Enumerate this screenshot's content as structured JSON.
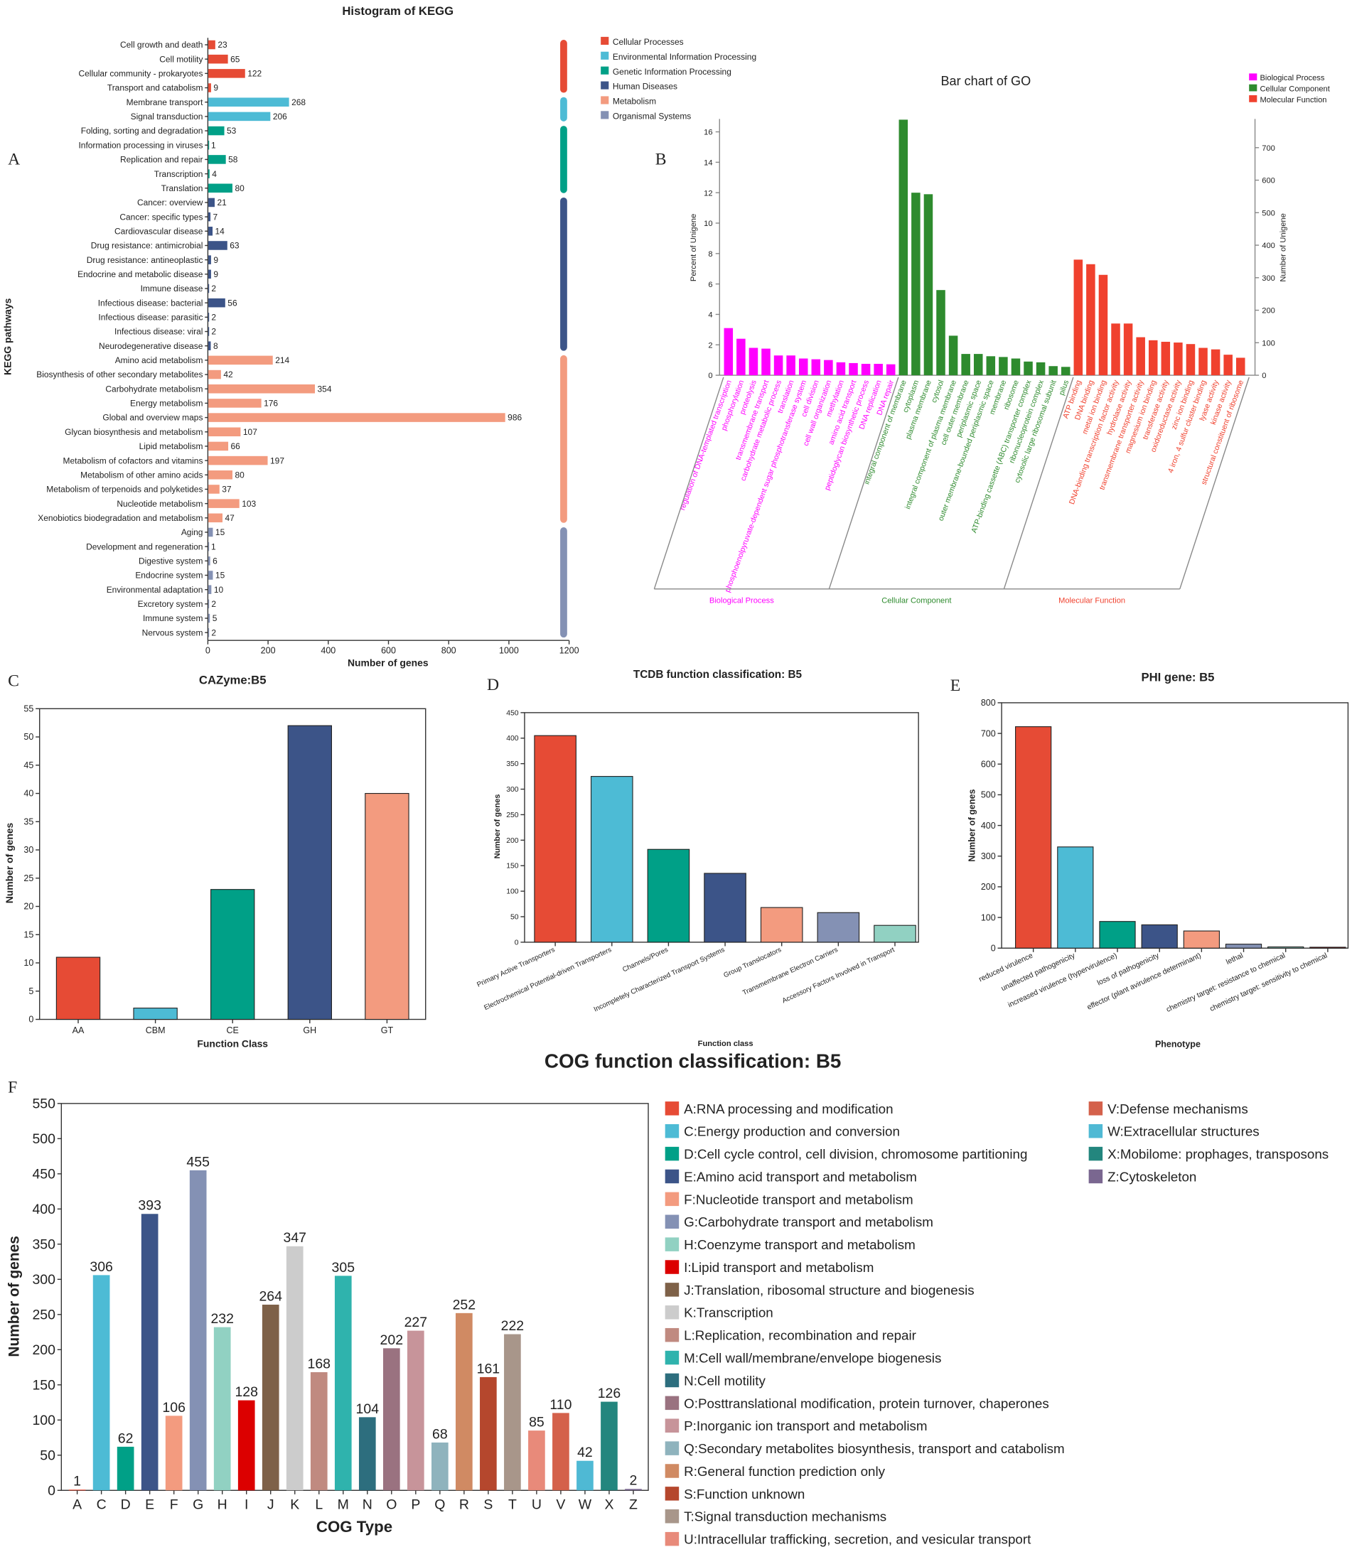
{
  "panel_labels": {
    "a": "A",
    "b": "B",
    "c": "C",
    "d": "D",
    "e": "E",
    "f": "F"
  },
  "chart_data": [
    {
      "id": "kegg",
      "type": "bar",
      "orientation": "horizontal",
      "title": "Histogram of KEGG",
      "xlabel": "Number of genes",
      "ylabel": "KEGG pathways",
      "xlim": [
        0,
        1200
      ],
      "xticks": [
        0,
        200,
        400,
        600,
        800,
        1000,
        1200
      ],
      "groups": [
        {
          "name": "Cellular Processes",
          "color": "#e64b35"
        },
        {
          "name": "Environmental Information Processing",
          "color": "#4dbbd5"
        },
        {
          "name": "Genetic Information Processing",
          "color": "#00a087"
        },
        {
          "name": "Human Diseases",
          "color": "#3c5488"
        },
        {
          "name": "Metabolism",
          "color": "#f39b7f"
        },
        {
          "name": "Organismal Systems",
          "color": "#8491b4"
        }
      ],
      "categories": [
        "Cell growth and death",
        "Cell motility",
        "Cellular community - prokaryotes",
        "Transport and catabolism",
        "Membrane transport",
        "Signal transduction",
        "Folding, sorting and degradation",
        "Information processing in viruses",
        "Replication and repair",
        "Transcription",
        "Translation",
        "Cancer: overview",
        "Cancer: specific types",
        "Cardiovascular disease",
        "Drug resistance: antimicrobial",
        "Drug resistance: antineoplastic",
        "Endocrine and metabolic disease",
        "Immune disease",
        "Infectious disease: bacterial",
        "Infectious disease: parasitic",
        "Infectious disease: viral",
        "Neurodegenerative disease",
        "Amino acid metabolism",
        "Biosynthesis of other secondary metabolites",
        "Carbohydrate metabolism",
        "Energy metabolism",
        "Global and overview maps",
        "Glycan biosynthesis and metabolism",
        "Lipid metabolism",
        "Metabolism of cofactors and vitamins",
        "Metabolism of other amino acids",
        "Metabolism of terpenoids and polyketides",
        "Nucleotide metabolism",
        "Xenobiotics biodegradation and metabolism",
        "Aging",
        "Development and regeneration",
        "Digestive system",
        "Endocrine system",
        "Environmental adaptation",
        "Excretory system",
        "Immune system",
        "Nervous system"
      ],
      "values": [
        23,
        65,
        122,
        9,
        268,
        206,
        53,
        1,
        58,
        4,
        80,
        21,
        7,
        14,
        63,
        9,
        9,
        2,
        56,
        2,
        2,
        8,
        214,
        42,
        354,
        176,
        986,
        107,
        66,
        197,
        80,
        37,
        103,
        47,
        15,
        1,
        6,
        15,
        10,
        2,
        5,
        2
      ],
      "group_index": [
        0,
        0,
        0,
        0,
        1,
        1,
        2,
        2,
        2,
        2,
        2,
        3,
        3,
        3,
        3,
        3,
        3,
        3,
        3,
        3,
        3,
        3,
        4,
        4,
        4,
        4,
        4,
        4,
        4,
        4,
        4,
        4,
        4,
        4,
        5,
        5,
        5,
        5,
        5,
        5,
        5,
        5
      ]
    },
    {
      "id": "go",
      "type": "bar",
      "title": "Bar chart of GO",
      "ylabel": "Percent of Unigene",
      "ylabel_right": "Number of Unigene",
      "ylim": [
        0,
        16.8
      ],
      "yticks": [
        0,
        2,
        4,
        6,
        8,
        10,
        12,
        14,
        16
      ],
      "yticks_right": [
        0,
        100,
        200,
        300,
        400,
        500,
        600,
        700
      ],
      "groups": [
        {
          "name": "Biological Process",
          "color": "#ff00ff",
          "categories": [
            "regulation of DNA-templated transcription",
            "phosphorylation",
            "proteolysis",
            "transmembrane transport",
            "carbohydrate metabolic process",
            "translation",
            "phosphoenolpyruvate-dependent sugar phosphotransferase system",
            "cell division",
            "cell wall organization",
            "methylation",
            "amino acid transport",
            "peptidoglycan biosynthetic process",
            "DNA replication",
            "DNA repair"
          ],
          "values": [
            3.1,
            2.4,
            1.8,
            1.75,
            1.3,
            1.3,
            1.1,
            1.05,
            1.0,
            0.85,
            0.8,
            0.75,
            0.75,
            0.72
          ]
        },
        {
          "name": "Cellular Component",
          "color": "#2e8b2e",
          "categories": [
            "integral component of membrane",
            "cytoplasm",
            "plasma membrane",
            "cytosol",
            "integral component of plasma membrane",
            "cell outer membrane",
            "periplasmic space",
            "outer membrane-bounded periplasmic space",
            "membrane",
            "ribosome",
            "ATP-binding cassette (ABC) transporter complex",
            "ribonucleoprotein complex",
            "cytosolic large ribosomal subunit",
            "pilus"
          ],
          "values": [
            16.8,
            12.0,
            11.9,
            5.6,
            2.6,
            1.4,
            1.4,
            1.25,
            1.2,
            1.1,
            0.9,
            0.85,
            0.6,
            0.55
          ]
        },
        {
          "name": "Molecular Function",
          "color": "#f0412e",
          "categories": [
            "ATP binding",
            "DNA binding",
            "metal ion binding",
            "DNA-binding transcription factor activity",
            "hydrolase activity",
            "transmembrane transporter activity",
            "magnesium ion binding",
            "transferase activity",
            "oxidoreductase activity",
            "zinc ion binding",
            "4 iron, 4 sulfur cluster binding",
            "lyase activity",
            "kinase activity",
            "structural constituent of ribosome"
          ],
          "values": [
            7.6,
            7.3,
            6.6,
            3.4,
            3.4,
            2.5,
            2.3,
            2.2,
            2.15,
            2.05,
            1.8,
            1.7,
            1.35,
            1.15
          ]
        }
      ]
    },
    {
      "id": "cazyme",
      "type": "bar",
      "title": "CAZyme:B5",
      "xlabel": "Function Class",
      "ylabel": "Number of genes",
      "ylim": [
        0,
        55
      ],
      "yticks": [
        0,
        5,
        10,
        15,
        20,
        25,
        30,
        35,
        40,
        45,
        50,
        55
      ],
      "categories": [
        "AA",
        "CBM",
        "CE",
        "GH",
        "GT"
      ],
      "values": [
        11,
        2,
        23,
        52,
        40
      ],
      "colors": [
        "#e64b35",
        "#4dbbd5",
        "#00a087",
        "#3c5488",
        "#f39b7f"
      ]
    },
    {
      "id": "tcdb",
      "type": "bar",
      "title": "TCDB function classification: B5",
      "xlabel": "Function class",
      "ylabel": "Number of genes",
      "ylim": [
        0,
        450
      ],
      "yticks": [
        0,
        50,
        100,
        150,
        200,
        250,
        300,
        350,
        400,
        450
      ],
      "categories": [
        "Primary Active Transporters",
        "Electrochemical Potential-driven Transporters",
        "Channels/Pores",
        "Incompletely Characterized Transport Systems",
        "Group Translocators",
        "Transmembrane Electron Carriers",
        "Accessory Factors Involved in Transport"
      ],
      "values": [
        405,
        325,
        182,
        135,
        68,
        58,
        33
      ],
      "colors": [
        "#e64b35",
        "#4dbbd5",
        "#00a087",
        "#3c5488",
        "#f39b7f",
        "#8491b4",
        "#91d1c2"
      ]
    },
    {
      "id": "phi",
      "type": "bar",
      "title": "PHI gene: B5",
      "xlabel": "Phenotype",
      "ylabel": "Number of genes",
      "ylim": [
        0,
        800
      ],
      "yticks": [
        0,
        100,
        200,
        300,
        400,
        500,
        600,
        700,
        800
      ],
      "categories": [
        "reduced virulence",
        "unaffected pathogenicity",
        "increased virulence (hypervirulence)",
        "loss of pathogenicity",
        "effector (plant avirulence determinant)",
        "lethal",
        "chemistry target: resistance to chemical",
        "chemistry target: sensitivity to chemical"
      ],
      "values": [
        722,
        330,
        87,
        76,
        56,
        13,
        4,
        3
      ],
      "colors": [
        "#e64b35",
        "#4dbbd5",
        "#00a087",
        "#3c5488",
        "#f39b7f",
        "#8491b4",
        "#91d1c2",
        "#dc0000"
      ]
    },
    {
      "id": "cog",
      "type": "bar",
      "title": "COG function classification: B5",
      "xlabel": "COG Type",
      "ylabel": "Number of genes",
      "ylim": [
        0,
        550
      ],
      "yticks": [
        0,
        50,
        100,
        150,
        200,
        250,
        300,
        350,
        400,
        450,
        500,
        550
      ],
      "categories": [
        "A",
        "C",
        "D",
        "E",
        "F",
        "G",
        "H",
        "I",
        "J",
        "K",
        "L",
        "M",
        "N",
        "O",
        "P",
        "Q",
        "R",
        "S",
        "T",
        "U",
        "V",
        "W",
        "X",
        "Z"
      ],
      "values": [
        1,
        306,
        62,
        393,
        106,
        455,
        232,
        128,
        264,
        347,
        168,
        305,
        104,
        202,
        227,
        68,
        252,
        161,
        222,
        85,
        110,
        42,
        126,
        2
      ],
      "colors": [
        "#e64b35",
        "#4dbbd5",
        "#00a087",
        "#3c5488",
        "#f39b7f",
        "#8491b4",
        "#91d1c2",
        "#dc0000",
        "#7e6148",
        "#cccccc",
        "#c08a80",
        "#2fb3ad",
        "#2d6e7e",
        "#9a7280",
        "#c7949a",
        "#8fb3bd",
        "#d08a63",
        "#b5472d",
        "#a8968a",
        "#e88a7a",
        "#d4614b",
        "#4fb9d4",
        "#23867e",
        "#7a6790"
      ],
      "legend": [
        "A:RNA processing and modification",
        "C:Energy production and conversion",
        "D:Cell cycle control, cell division, chromosome partitioning",
        "E:Amino acid transport and metabolism",
        "F:Nucleotide transport and metabolism",
        "G:Carbohydrate transport and metabolism",
        "H:Coenzyme transport and metabolism",
        "I:Lipid transport and metabolism",
        "J:Translation, ribosomal structure and biogenesis",
        "K:Transcription",
        "L:Replication, recombination and repair",
        "M:Cell wall/membrane/envelope biogenesis",
        "N:Cell motility",
        "O:Posttranslational modification, protein turnover, chaperones",
        "P:Inorganic ion transport and metabolism",
        "Q:Secondary metabolites biosynthesis, transport and catabolism",
        "R:General function prediction only",
        "S:Function unknown",
        "T:Signal transduction mechanisms",
        "U:Intracellular trafficking, secretion, and vesicular transport",
        "V:Defense mechanisms",
        "W:Extracellular structures",
        "X:Mobilome: prophages, transposons",
        "Z:Cytoskeleton"
      ]
    }
  ]
}
